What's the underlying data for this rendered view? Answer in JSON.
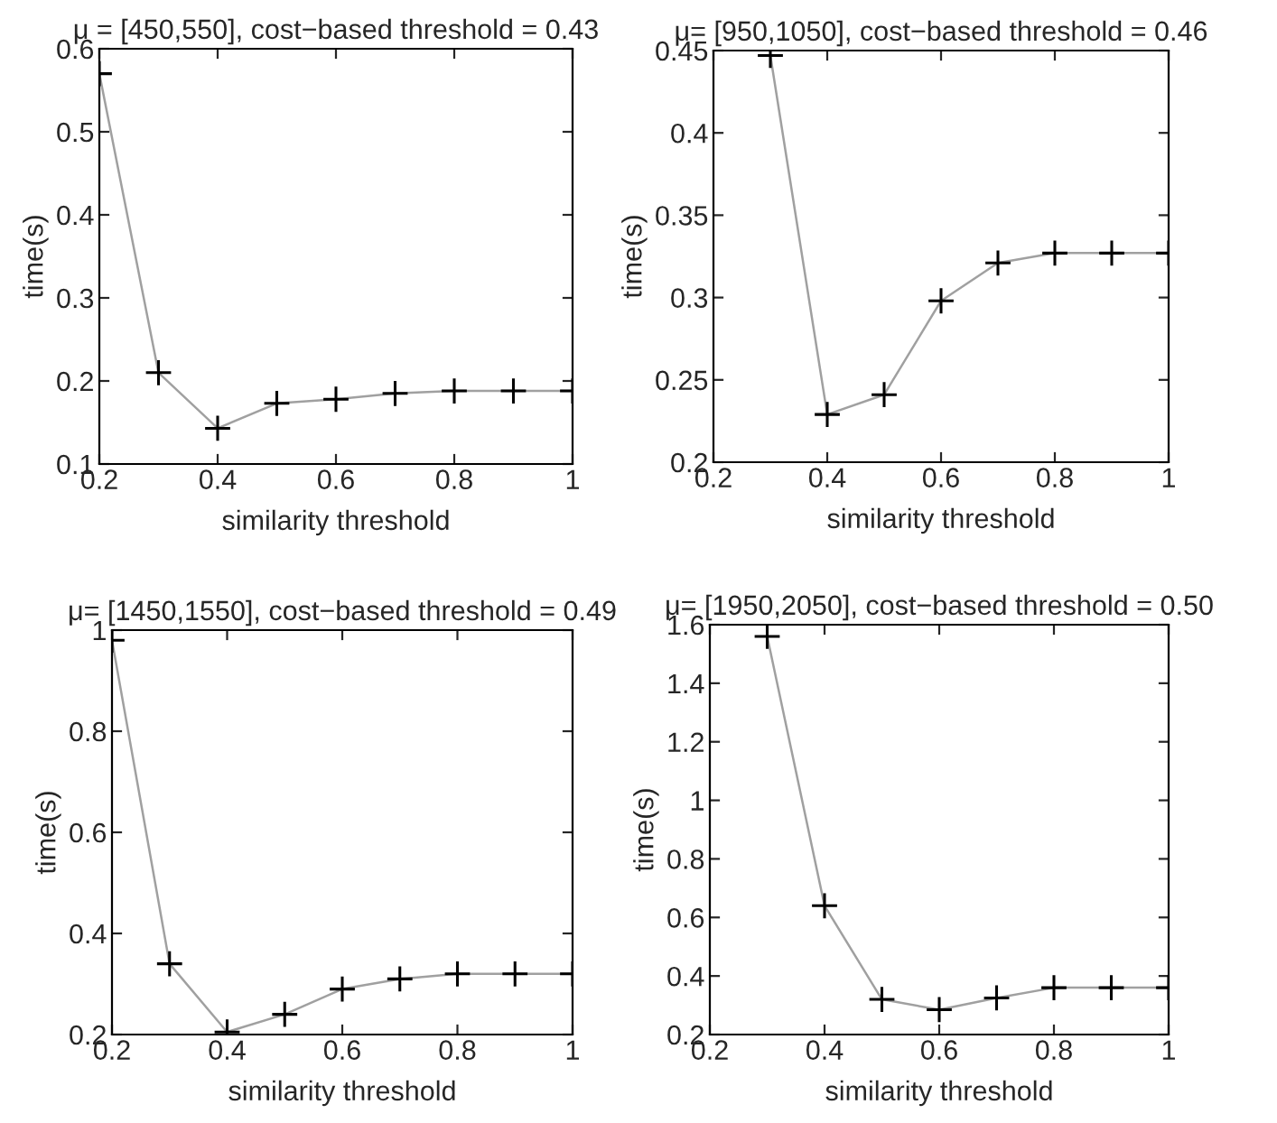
{
  "chart_data": [
    {
      "type": "line",
      "title": "μ = [450,550], cost−based threshold = 0.43",
      "xlabel": "similarity threshold",
      "ylabel": "time(s)",
      "x": [
        0.2,
        0.3,
        0.4,
        0.5,
        0.6,
        0.7,
        0.8,
        0.9,
        1
      ],
      "series": [
        {
          "color": "#a0a0a0",
          "values": [
            0.57,
            0.21,
            0.143,
            0.173,
            0.178,
            0.185,
            0.188,
            0.188,
            0.188
          ]
        }
      ],
      "xlim": [
        0.2,
        1
      ],
      "xticks": [
        0.2,
        0.4,
        0.6,
        0.8,
        1
      ],
      "ylim": [
        0.1,
        0.6
      ],
      "yticks": [
        0.1,
        0.2,
        0.3,
        0.4,
        0.5,
        0.6
      ],
      "marker": "cross",
      "grid": false
    },
    {
      "type": "line",
      "title": "μ= [950,1050], cost−based threshold = 0.46",
      "xlabel": "similarity threshold",
      "ylabel": "time(s)",
      "x": [
        0.3,
        0.4,
        0.5,
        0.6,
        0.7,
        0.8,
        0.9,
        1
      ],
      "series": [
        {
          "color": "#a0a0a0",
          "values": [
            0.447,
            0.229,
            0.241,
            0.298,
            0.321,
            0.327,
            0.327,
            0.327
          ]
        }
      ],
      "xlim": [
        0.2,
        1
      ],
      "xticks": [
        0.2,
        0.4,
        0.6,
        0.8,
        1
      ],
      "ylim": [
        0.2,
        0.45
      ],
      "yticks": [
        0.2,
        0.25,
        0.3,
        0.35,
        0.4,
        0.45
      ],
      "marker": "cross",
      "grid": false
    },
    {
      "type": "line",
      "title": "μ= [1450,1550], cost−based threshold = 0.49",
      "xlabel": "similarity threshold",
      "ylabel": "time(s)",
      "x": [
        0.2,
        0.3,
        0.4,
        0.5,
        0.6,
        0.7,
        0.8,
        0.9,
        1
      ],
      "series": [
        {
          "color": "#a0a0a0",
          "values": [
            0.98,
            0.34,
            0.205,
            0.24,
            0.29,
            0.31,
            0.32,
            0.32,
            0.32
          ]
        }
      ],
      "xlim": [
        0.2,
        1
      ],
      "xticks": [
        0.2,
        0.4,
        0.6,
        0.8,
        1
      ],
      "ylim": [
        0.2,
        1
      ],
      "yticks": [
        0.2,
        0.4,
        0.6,
        0.8,
        1
      ],
      "marker": "cross",
      "grid": false
    },
    {
      "type": "line",
      "title": "μ= [1950,2050], cost−based threshold = 0.50",
      "xlabel": "similarity threshold",
      "ylabel": "time(s)",
      "x": [
        0.3,
        0.4,
        0.5,
        0.6,
        0.7,
        0.8,
        0.9,
        1
      ],
      "series": [
        {
          "color": "#a0a0a0",
          "values": [
            1.56,
            0.64,
            0.32,
            0.285,
            0.325,
            0.36,
            0.36,
            0.36
          ]
        }
      ],
      "xlim": [
        0.2,
        1
      ],
      "xticks": [
        0.2,
        0.4,
        0.6,
        0.8,
        1
      ],
      "ylim": [
        0.2,
        1.6
      ],
      "yticks": [
        0.2,
        0.4,
        0.6,
        0.8,
        1,
        1.2,
        1.4,
        1.6
      ],
      "marker": "cross",
      "grid": false
    }
  ]
}
